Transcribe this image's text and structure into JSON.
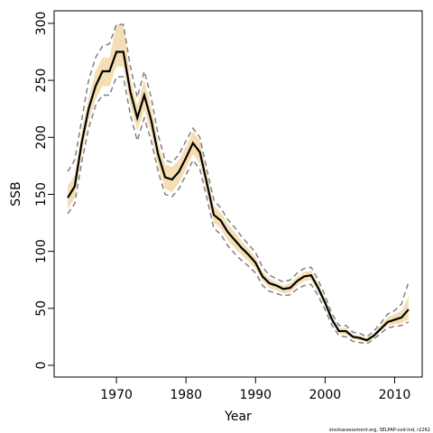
{
  "chart_data": {
    "type": "line",
    "xlabel": "Year",
    "ylabel": "SSB",
    "footnote": "stockassessment.org, SELPAP-cod-ind, r2262",
    "x": [
      1963,
      1964,
      1965,
      1966,
      1967,
      1968,
      1969,
      1970,
      1971,
      1972,
      1973,
      1974,
      1975,
      1976,
      1977,
      1978,
      1979,
      1980,
      1981,
      1982,
      1983,
      1984,
      1985,
      1986,
      1987,
      1988,
      1989,
      1990,
      1991,
      1992,
      1993,
      1994,
      1995,
      1996,
      1997,
      1998,
      1999,
      2000,
      2001,
      2002,
      2003,
      2004,
      2005,
      2006,
      2007,
      2008,
      2009,
      2010,
      2011,
      2012
    ],
    "values": [
      147,
      157,
      195,
      225,
      245,
      258,
      258,
      275,
      275,
      240,
      217,
      237,
      215,
      185,
      165,
      163,
      170,
      182,
      195,
      187,
      160,
      132,
      127,
      117,
      110,
      103,
      97,
      90,
      78,
      72,
      70,
      67,
      68,
      74,
      78,
      79,
      68,
      55,
      40,
      30,
      30,
      25,
      24,
      22,
      26,
      32,
      38,
      40,
      42,
      49
    ],
    "band_upper": [
      157,
      167,
      205,
      235,
      258,
      270,
      270,
      299,
      299,
      252,
      228,
      250,
      227,
      195,
      176,
      174,
      180,
      192,
      205,
      197,
      168,
      140,
      134,
      124,
      117,
      109,
      102,
      95,
      82,
      76,
      73,
      70,
      72,
      78,
      82,
      83,
      72,
      58,
      43,
      33,
      33,
      27,
      26,
      24,
      28,
      35,
      42,
      45,
      48,
      60
    ],
    "band_lower": [
      137,
      147,
      185,
      215,
      233,
      245,
      245,
      262,
      262,
      228,
      206,
      224,
      203,
      175,
      155,
      152,
      160,
      172,
      185,
      177,
      152,
      125,
      120,
      110,
      103,
      97,
      91,
      85,
      74,
      68,
      66,
      63,
      64,
      70,
      74,
      75,
      64,
      52,
      37,
      28,
      27,
      23,
      22,
      20,
      24,
      30,
      35,
      36,
      37,
      40
    ],
    "dashed_upper": [
      170,
      180,
      215,
      250,
      270,
      280,
      282,
      299,
      299,
      262,
      235,
      258,
      235,
      202,
      180,
      178,
      185,
      197,
      208,
      200,
      172,
      145,
      138,
      128,
      121,
      113,
      106,
      99,
      86,
      79,
      76,
      73,
      75,
      81,
      85,
      86,
      75,
      61,
      45,
      35,
      35,
      29,
      28,
      25,
      30,
      37,
      45,
      48,
      54,
      73
    ],
    "dashed_lower": [
      133,
      142,
      178,
      208,
      228,
      237,
      237,
      253,
      253,
      220,
      197,
      217,
      197,
      170,
      150,
      148,
      155,
      167,
      180,
      172,
      147,
      120,
      115,
      105,
      98,
      92,
      87,
      81,
      70,
      65,
      63,
      61,
      62,
      67,
      70,
      71,
      61,
      49,
      35,
      26,
      25,
      21,
      20,
      19,
      23,
      28,
      33,
      34,
      35,
      38
    ],
    "color": "#000000",
    "band_color": "#f5deb3",
    "dashed_color": "#808080",
    "xlim": [
      1961.04,
      2013.96
    ],
    "ylim": [
      -10.3,
      311
    ],
    "xticks": [
      1970,
      1980,
      1990,
      2000,
      2010
    ],
    "yticks": [
      0,
      50,
      100,
      150,
      200,
      250,
      300
    ]
  }
}
